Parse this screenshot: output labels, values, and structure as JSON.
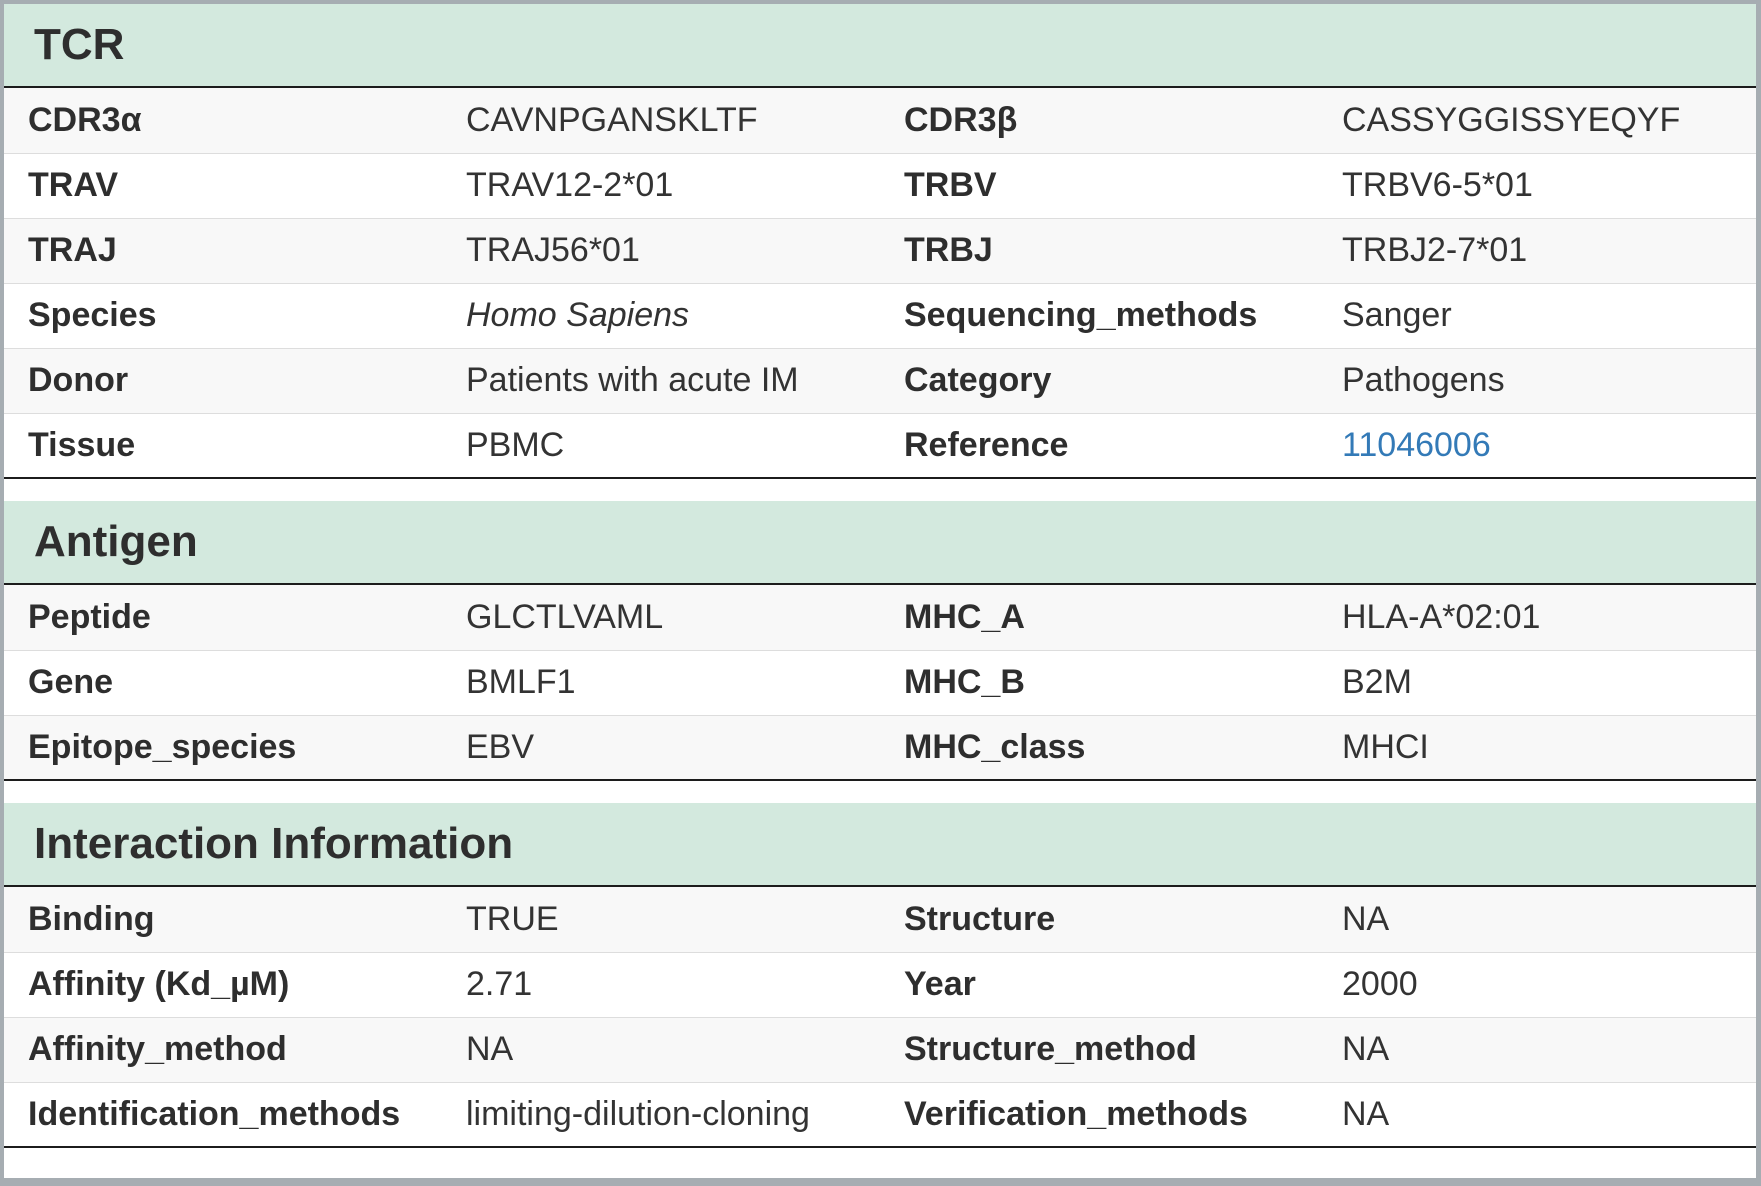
{
  "theme": {
    "header_bg": "#d3e9de",
    "stripe_bg": "#f8f8f8",
    "frame_border": "#a6adb2",
    "heavy_rule": "#1c1c1c",
    "row_divider": "#dddddd",
    "text": "#333333",
    "link": "#337ab7"
  },
  "sections": [
    {
      "title": "TCR",
      "rows": [
        [
          {
            "label": "CDR3α",
            "value": "CAVNPGANSKLTF"
          },
          {
            "label": "CDR3β",
            "value": "CASSYGGISSYEQYF"
          }
        ],
        [
          {
            "label": "TRAV",
            "value": "TRAV12-2*01"
          },
          {
            "label": "TRBV",
            "value": "TRBV6-5*01"
          }
        ],
        [
          {
            "label": "TRAJ",
            "value": "TRAJ56*01"
          },
          {
            "label": "TRBJ",
            "value": "TRBJ2-7*01"
          }
        ],
        [
          {
            "label": "Species",
            "value": "Homo Sapiens"
          },
          {
            "label": "Sequencing_methods",
            "value": "Sanger"
          }
        ],
        [
          {
            "label": "Donor",
            "value": "Patients with acute IM"
          },
          {
            "label": "Category",
            "value": "Pathogens"
          }
        ],
        [
          {
            "label": "Tissue",
            "value": "PBMC"
          },
          {
            "label": "Reference",
            "value": "11046006"
          }
        ]
      ]
    },
    {
      "title": "Antigen",
      "rows": [
        [
          {
            "label": "Peptide",
            "value": "GLCTLVAML"
          },
          {
            "label": "MHC_A",
            "value": "HLA-A*02:01"
          }
        ],
        [
          {
            "label": "Gene",
            "value": "BMLF1"
          },
          {
            "label": "MHC_B",
            "value": "B2M"
          }
        ],
        [
          {
            "label": "Epitope_species",
            "value": "EBV"
          },
          {
            "label": "MHC_class",
            "value": "MHCI"
          }
        ]
      ]
    },
    {
      "title": "Interaction Information",
      "rows": [
        [
          {
            "label": "Binding",
            "value": "TRUE"
          },
          {
            "label": "Structure",
            "value": "NA"
          }
        ],
        [
          {
            "label": "Affinity (Kd_µM)",
            "value": "2.71"
          },
          {
            "label": "Year",
            "value": "2000"
          }
        ],
        [
          {
            "label": "Affinity_method",
            "value": "NA"
          },
          {
            "label": "Structure_method",
            "value": "NA"
          }
        ],
        [
          {
            "label": "Identification_methods",
            "value": "limiting-dilution-cloning"
          },
          {
            "label": "Verification_methods",
            "value": "NA"
          }
        ]
      ]
    }
  ]
}
